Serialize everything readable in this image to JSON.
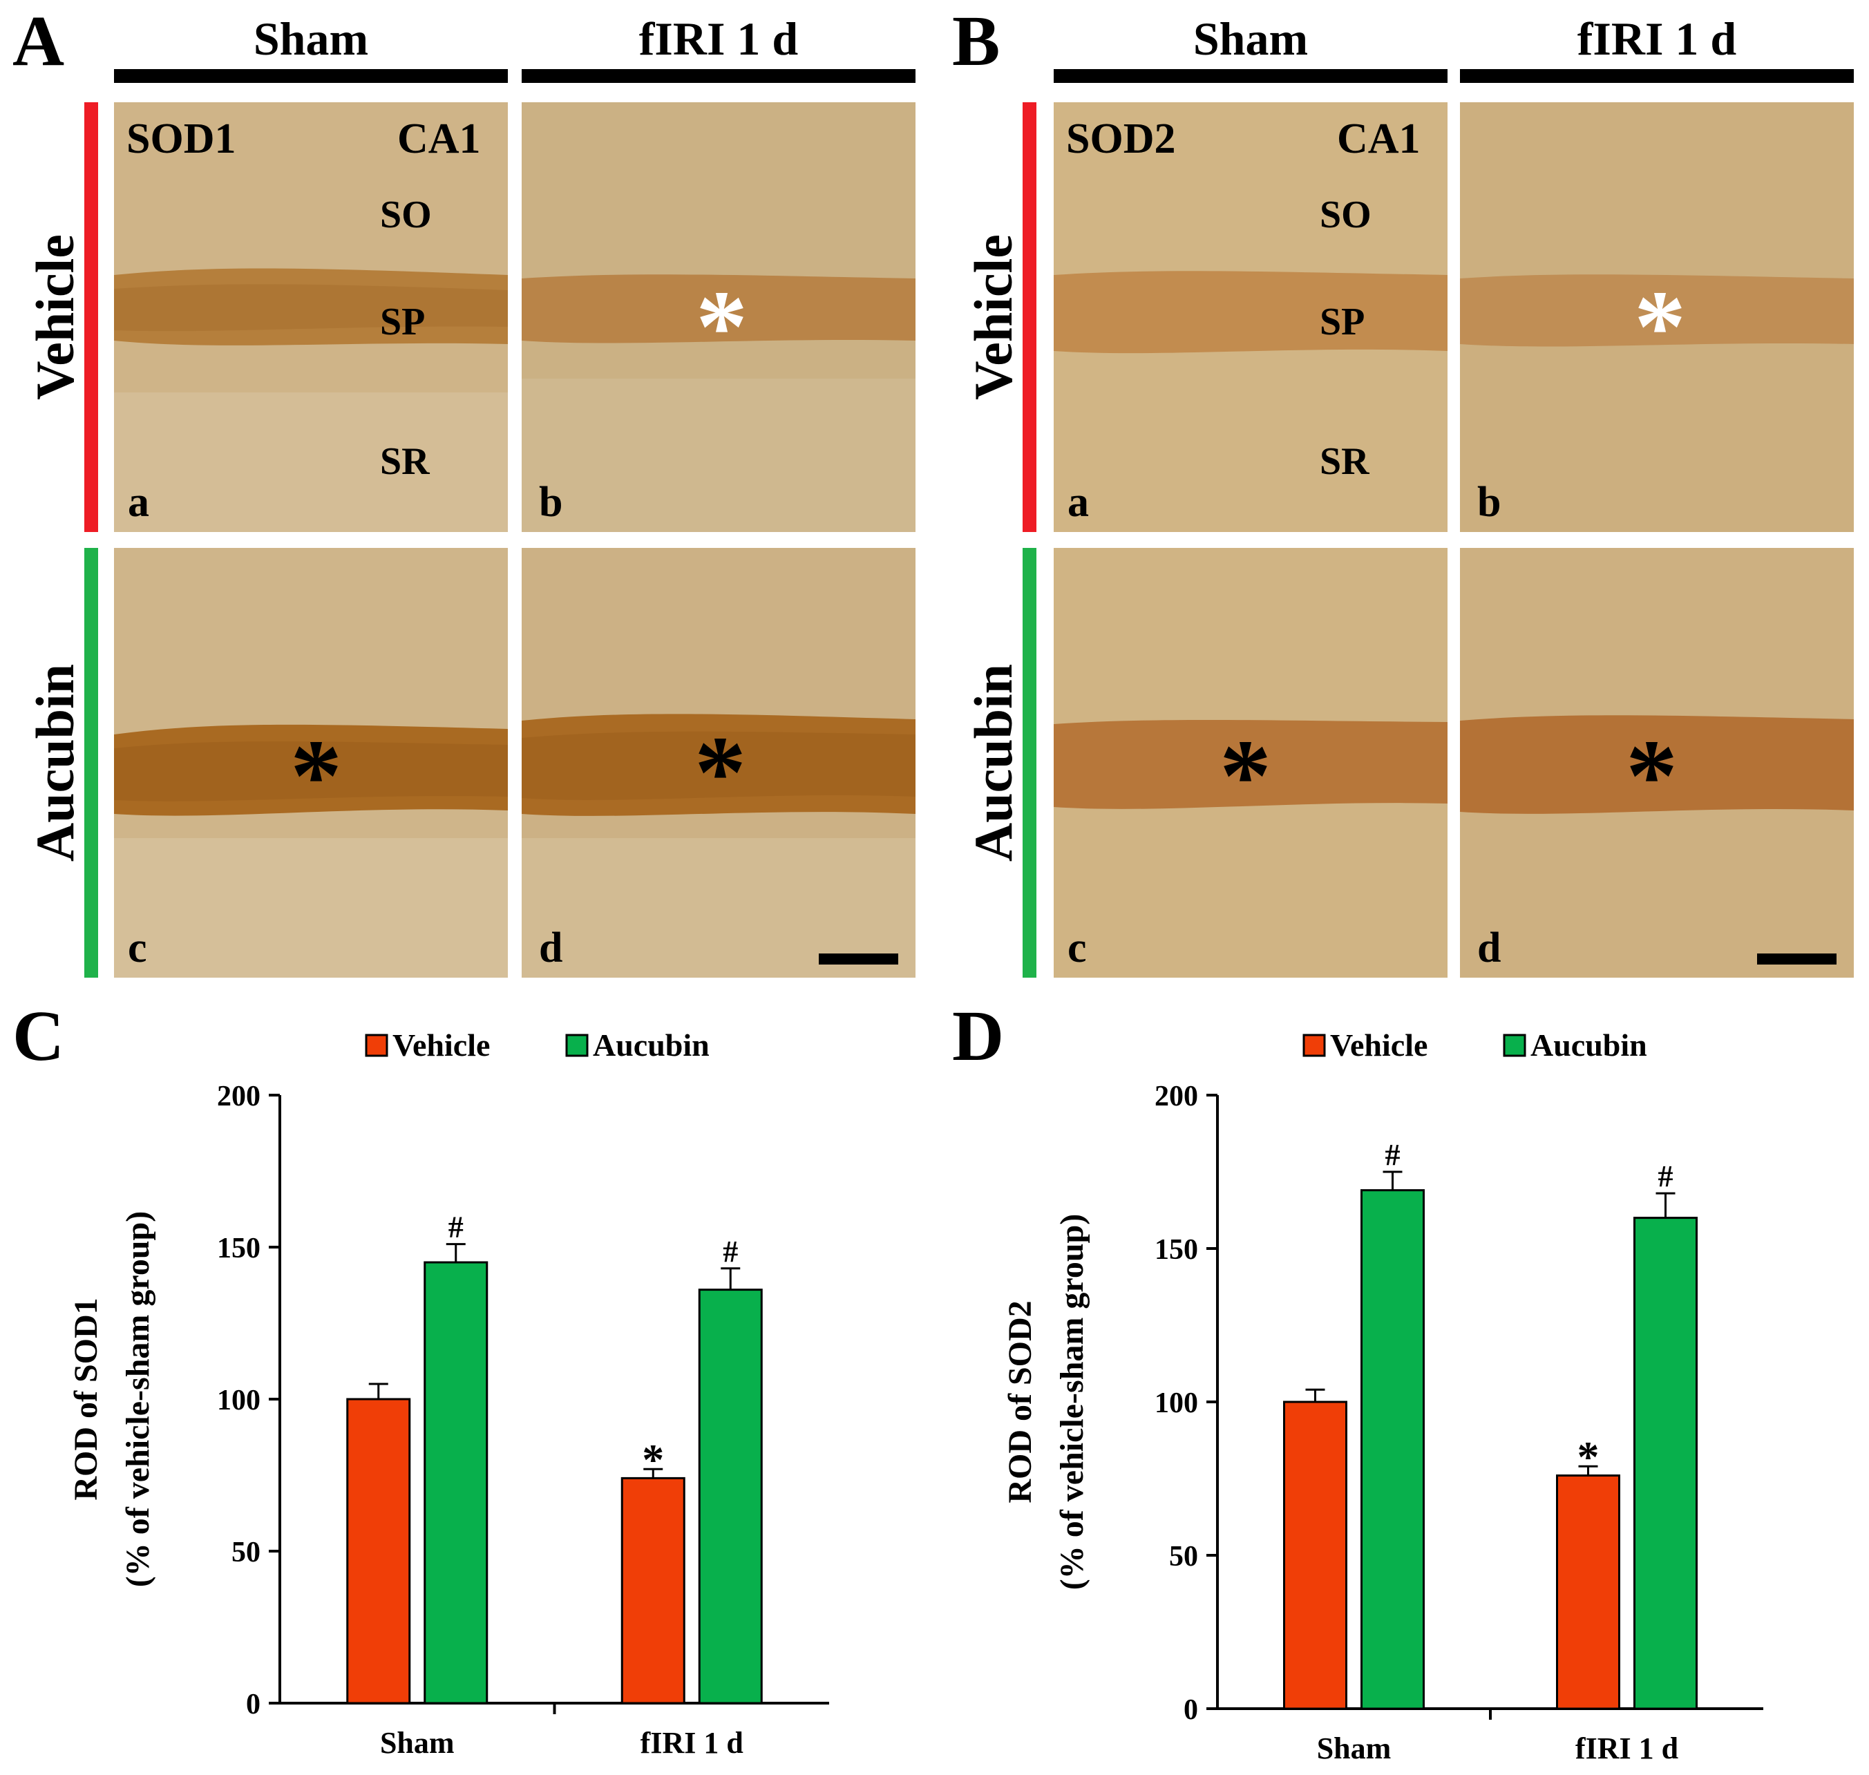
{
  "figure": {
    "panel_labels": {
      "A": "A",
      "B": "B",
      "C": "C",
      "D": "D"
    },
    "colors": {
      "vehicle": "#f03e07",
      "aucubin": "#08b04c",
      "bar_outline": "#000000",
      "tissue_light": "#c9ad80",
      "tissue_dark": "#b07b3b",
      "white_star": "#ffffff"
    },
    "panel_A": {
      "col_sham": "Sham",
      "col_firi": "fIRI 1 d",
      "row_vehicle": "Vehicle",
      "row_aucubin": "Aucubin",
      "stain": "SOD1",
      "region": "CA1",
      "layers": {
        "so": "SO",
        "sp": "SP",
        "sr": "SR"
      },
      "sub": {
        "a": "a",
        "b": "b",
        "c": "c",
        "d": "d"
      },
      "asterisk": "*"
    },
    "panel_B": {
      "col_sham": "Sham",
      "col_firi": "fIRI 1 d",
      "row_vehicle": "Vehicle",
      "row_aucubin": "Aucubin",
      "stain": "SOD2",
      "region": "CA1",
      "layers": {
        "so": "SO",
        "sp": "SP",
        "sr": "SR"
      },
      "sub": {
        "a": "a",
        "b": "b",
        "c": "c",
        "d": "d"
      },
      "asterisk": "*"
    }
  },
  "chart_data": [
    {
      "type": "bar",
      "panel": "C",
      "title": "",
      "legend": [
        "Vehicle",
        "Aucubin"
      ],
      "legend_position": "top-center",
      "categories": [
        "Sham",
        "fIRI 1 d"
      ],
      "series": [
        {
          "name": "Vehicle",
          "values": [
            100,
            74
          ],
          "errors": [
            5,
            3
          ],
          "marks": [
            "",
            "*"
          ]
        },
        {
          "name": "Aucubin",
          "values": [
            145,
            136
          ],
          "errors": [
            6,
            7
          ],
          "marks": [
            "#",
            "#"
          ]
        }
      ],
      "ylabel_line1": "ROD of SOD1",
      "ylabel_line2": "(% of vehicle-sham group)",
      "xlabel": "",
      "ylim": [
        0,
        200
      ],
      "yticks": [
        0,
        50,
        100,
        150,
        200
      ]
    },
    {
      "type": "bar",
      "panel": "D",
      "title": "",
      "legend": [
        "Vehicle",
        "Aucubin"
      ],
      "legend_position": "top-center",
      "categories": [
        "Sham",
        "fIRI 1 d"
      ],
      "series": [
        {
          "name": "Vehicle",
          "values": [
            100,
            76
          ],
          "errors": [
            4,
            3
          ],
          "marks": [
            "",
            "*"
          ]
        },
        {
          "name": "Aucubin",
          "values": [
            169,
            160
          ],
          "errors": [
            6,
            8
          ],
          "marks": [
            "#",
            "#"
          ]
        }
      ],
      "ylabel_line1": "ROD of SOD2",
      "ylabel_line2": "(% of vehicle-sham group)",
      "xlabel": "",
      "ylim": [
        0,
        200
      ],
      "yticks": [
        0,
        50,
        100,
        150,
        200
      ]
    }
  ]
}
